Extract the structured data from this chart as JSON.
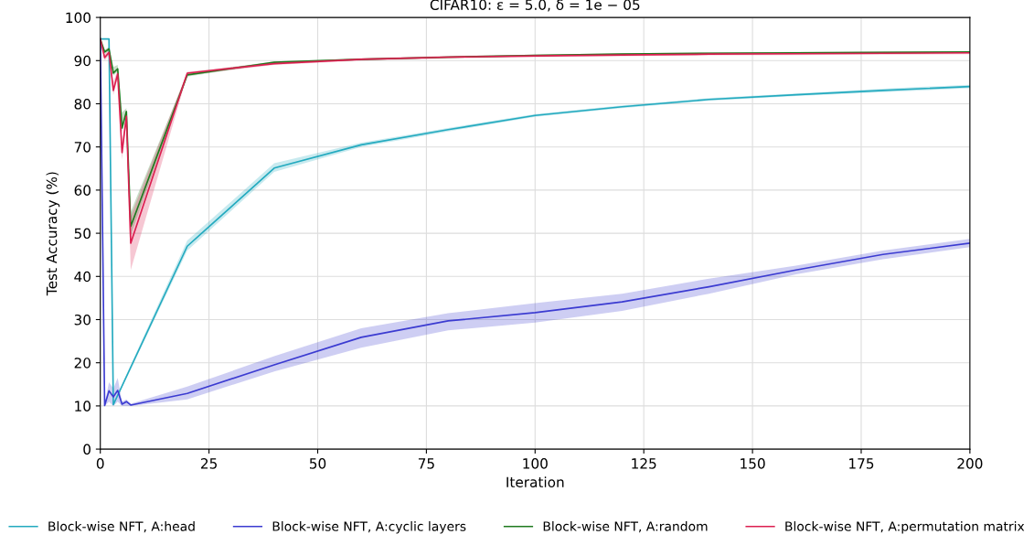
{
  "chart_data": {
    "type": "line",
    "title": "CIFAR10: ε = 5.0, δ = 1e − 05",
    "xlabel": "Iteration",
    "ylabel": "Test Accuracy (%)",
    "xlim": [
      0,
      200
    ],
    "xticks": [
      0,
      25,
      50,
      75,
      100,
      125,
      150,
      175,
      200
    ],
    "ylim": [
      0,
      100
    ],
    "yticks": [
      0,
      10,
      20,
      30,
      40,
      50,
      60,
      70,
      80,
      90,
      100
    ],
    "grid": true,
    "legend": "bottom",
    "marker": "none",
    "line_style": "solid",
    "series": [
      {
        "name": "Block-wise NFT, A:head",
        "color": "#23aabf",
        "x": [
          0,
          1,
          2,
          3,
          20,
          40,
          60,
          80,
          100,
          120,
          140,
          160,
          180,
          200
        ],
        "values": [
          95,
          95,
          95,
          10.3,
          47.0,
          65.1,
          70.5,
          74.0,
          77.3,
          79.3,
          81.0,
          82.1,
          83.1,
          84.0
        ],
        "lower": [
          95,
          95,
          95,
          10.0,
          46.0,
          64.2,
          70.0,
          73.6,
          77.0,
          79.0,
          80.7,
          81.8,
          82.7,
          83.6
        ],
        "upper": [
          95,
          95,
          95,
          10.6,
          48.3,
          66.2,
          71.0,
          74.4,
          77.6,
          79.6,
          81.3,
          82.4,
          83.5,
          84.4
        ]
      },
      {
        "name": "Block-wise NFT, A:cyclic layers",
        "color": "#3b3bd1",
        "x": [
          0,
          1,
          2,
          3,
          4,
          5,
          6,
          7,
          20,
          40,
          60,
          80,
          100,
          120,
          140,
          160,
          180,
          200
        ],
        "values": [
          95,
          10.1,
          13.5,
          12.1,
          13.6,
          10.4,
          11.0,
          10.2,
          12.9,
          19.5,
          25.9,
          29.7,
          31.6,
          34.1,
          37.6,
          41.5,
          45.1,
          47.7
        ],
        "lower": [
          null,
          10.0,
          11.0,
          10.0,
          11.0,
          10.0,
          10.0,
          10.0,
          11.5,
          18.0,
          23.5,
          27.5,
          29.3,
          32.0,
          36.0,
          40.5,
          44.0,
          46.8
        ],
        "upper": [
          null,
          10.5,
          15.5,
          14.0,
          16.5,
          11.0,
          11.5,
          10.5,
          14.5,
          21.5,
          28.0,
          31.5,
          33.8,
          36.0,
          39.5,
          42.5,
          46.0,
          48.7
        ]
      },
      {
        "name": "Block-wise NFT, A:random",
        "color": "#1f7a1f",
        "x": [
          0,
          1,
          2,
          3,
          4,
          5,
          6,
          7,
          20,
          40,
          60,
          80,
          100,
          120,
          140,
          160,
          180,
          200
        ],
        "values": [
          95,
          92.0,
          92.7,
          87.1,
          88.1,
          74.4,
          78.2,
          51.6,
          86.7,
          89.6,
          90.3,
          90.8,
          91.2,
          91.5,
          91.7,
          91.8,
          91.9,
          92.0
        ],
        "lower": [
          95,
          91.6,
          92.3,
          86.5,
          87.5,
          73.5,
          77.5,
          49.5,
          86.3,
          89.4,
          90.1,
          90.6,
          91.0,
          91.3,
          91.5,
          91.6,
          91.7,
          91.8
        ],
        "upper": [
          95,
          92.5,
          93.2,
          88.5,
          89.0,
          78.0,
          79.0,
          55.0,
          87.1,
          89.8,
          90.5,
          91.0,
          91.4,
          91.7,
          91.9,
          92.0,
          92.1,
          92.2
        ]
      },
      {
        "name": "Block-wise NFT, A:permutation matrix",
        "color": "#dc1f50",
        "x": [
          0,
          1,
          2,
          3,
          4,
          5,
          6,
          7,
          20,
          40,
          60,
          80,
          100,
          120,
          140,
          160,
          180,
          200
        ],
        "values": [
          95,
          90.7,
          91.9,
          83.1,
          86.9,
          68.7,
          77.1,
          47.7,
          87.1,
          89.3,
          90.3,
          90.8,
          91.1,
          91.3,
          91.5,
          91.6,
          91.7,
          91.8
        ],
        "lower": [
          95,
          90.0,
          91.3,
          82.0,
          86.0,
          67.0,
          76.0,
          41.5,
          86.6,
          89.0,
          90.0,
          90.5,
          90.8,
          91.0,
          91.2,
          91.3,
          91.4,
          91.5
        ],
        "upper": [
          95,
          91.5,
          92.5,
          85.0,
          88.0,
          71.0,
          78.0,
          54.0,
          87.4,
          89.6,
          90.6,
          91.1,
          91.4,
          91.6,
          91.8,
          91.9,
          92.0,
          92.1
        ]
      }
    ]
  }
}
